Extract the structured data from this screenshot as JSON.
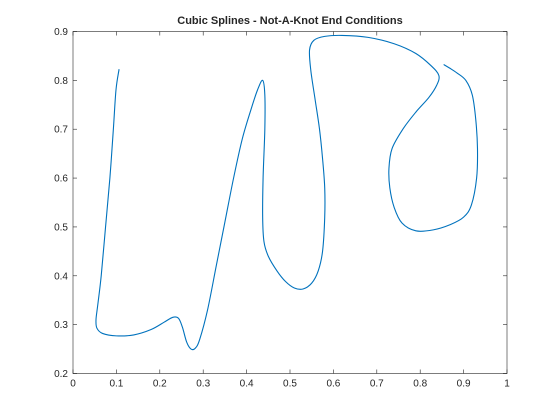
{
  "chart_data": {
    "type": "line",
    "title": "Cubic Splines - Not-A-Knot End Conditions",
    "xlabel": "",
    "ylabel": "",
    "xlim": [
      0,
      1
    ],
    "ylim": [
      0.2,
      0.9
    ],
    "xticks": [
      0,
      0.1,
      0.2,
      0.3,
      0.4,
      0.5,
      0.6,
      0.7,
      0.8,
      0.9,
      1
    ],
    "xtick_labels": [
      "0",
      "0.1",
      "0.2",
      "0.3",
      "0.4",
      "0.5",
      "0.6",
      "0.7",
      "0.8",
      "0.9",
      "1"
    ],
    "yticks": [
      0.2,
      0.3,
      0.4,
      0.5,
      0.6,
      0.7,
      0.8,
      0.9
    ],
    "ytick_labels": [
      "0.2",
      "0.3",
      "0.4",
      "0.5",
      "0.6",
      "0.7",
      "0.8",
      "0.9"
    ],
    "grid": false,
    "legend": "none",
    "series": [
      {
        "color": "#0072BD",
        "points": [
          [
            0.106,
            0.822
          ],
          [
            0.099,
            0.78
          ],
          [
            0.093,
            0.7
          ],
          [
            0.085,
            0.6
          ],
          [
            0.075,
            0.5
          ],
          [
            0.065,
            0.4
          ],
          [
            0.057,
            0.34
          ],
          [
            0.053,
            0.31
          ],
          [
            0.055,
            0.293
          ],
          [
            0.068,
            0.282
          ],
          [
            0.1,
            0.277
          ],
          [
            0.14,
            0.279
          ],
          [
            0.18,
            0.29
          ],
          [
            0.21,
            0.305
          ],
          [
            0.23,
            0.315
          ],
          [
            0.243,
            0.313
          ],
          [
            0.252,
            0.295
          ],
          [
            0.262,
            0.264
          ],
          [
            0.272,
            0.25
          ],
          [
            0.282,
            0.252
          ],
          [
            0.292,
            0.27
          ],
          [
            0.31,
            0.33
          ],
          [
            0.33,
            0.42
          ],
          [
            0.35,
            0.51
          ],
          [
            0.37,
            0.6
          ],
          [
            0.39,
            0.68
          ],
          [
            0.41,
            0.74
          ],
          [
            0.425,
            0.78
          ],
          [
            0.437,
            0.8
          ],
          [
            0.442,
            0.77
          ],
          [
            0.442,
            0.7
          ],
          [
            0.438,
            0.6
          ],
          [
            0.437,
            0.52
          ],
          [
            0.44,
            0.47
          ],
          [
            0.45,
            0.44
          ],
          [
            0.47,
            0.41
          ],
          [
            0.49,
            0.388
          ],
          [
            0.51,
            0.375
          ],
          [
            0.53,
            0.373
          ],
          [
            0.55,
            0.385
          ],
          [
            0.565,
            0.41
          ],
          [
            0.575,
            0.45
          ],
          [
            0.58,
            0.52
          ],
          [
            0.58,
            0.58
          ],
          [
            0.575,
            0.64
          ],
          [
            0.568,
            0.7
          ],
          [
            0.558,
            0.76
          ],
          [
            0.548,
            0.82
          ],
          [
            0.545,
            0.862
          ],
          [
            0.555,
            0.882
          ],
          [
            0.58,
            0.89
          ],
          [
            0.62,
            0.892
          ],
          [
            0.68,
            0.888
          ],
          [
            0.74,
            0.875
          ],
          [
            0.79,
            0.855
          ],
          [
            0.825,
            0.83
          ],
          [
            0.843,
            0.81
          ],
          [
            0.838,
            0.79
          ],
          [
            0.82,
            0.765
          ],
          [
            0.79,
            0.735
          ],
          [
            0.76,
            0.7
          ],
          [
            0.735,
            0.66
          ],
          [
            0.728,
            0.62
          ],
          [
            0.73,
            0.58
          ],
          [
            0.74,
            0.54
          ],
          [
            0.758,
            0.508
          ],
          [
            0.79,
            0.492
          ],
          [
            0.83,
            0.494
          ],
          [
            0.87,
            0.505
          ],
          [
            0.9,
            0.52
          ],
          [
            0.918,
            0.545
          ],
          [
            0.93,
            0.6
          ],
          [
            0.932,
            0.66
          ],
          [
            0.928,
            0.72
          ],
          [
            0.92,
            0.77
          ],
          [
            0.905,
            0.8
          ],
          [
            0.885,
            0.815
          ],
          [
            0.868,
            0.825
          ],
          [
            0.855,
            0.832
          ]
        ]
      }
    ]
  }
}
